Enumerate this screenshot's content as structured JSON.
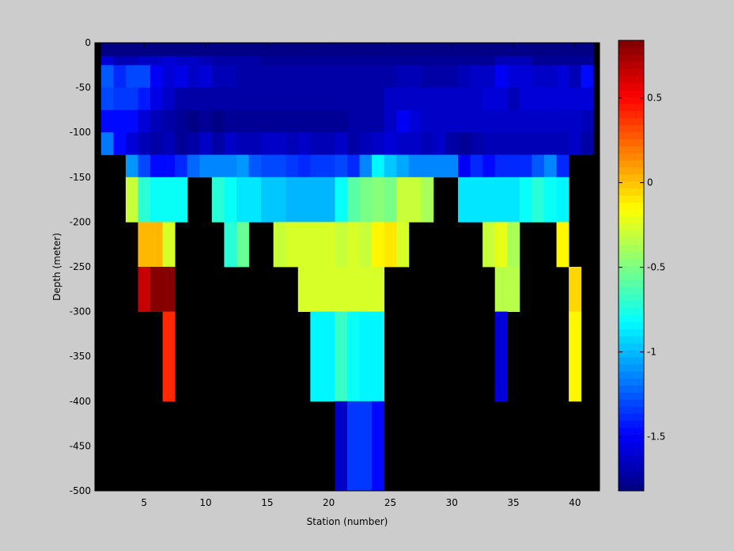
{
  "chart_data": {
    "type": "heatmap",
    "title": "",
    "xlabel": "Station (number)",
    "ylabel": "Depth (meter)",
    "xlim": [
      1,
      42
    ],
    "ylim": [
      -500,
      0
    ],
    "x_ticks": [
      5,
      10,
      15,
      20,
      25,
      30,
      35,
      40
    ],
    "y_ticks": [
      0,
      -50,
      -100,
      -150,
      -200,
      -250,
      -300,
      -350,
      -400,
      -450,
      -500
    ],
    "colorbar": {
      "colormap": "jet",
      "range": [
        -1.82,
        0.84
      ],
      "ticks": [
        0.5,
        0,
        -0.5,
        -1,
        -1.5
      ]
    },
    "no_data_color": "#000000",
    "stations": [
      2,
      3,
      4,
      5,
      6,
      7,
      8,
      9,
      10,
      11,
      12,
      13,
      14,
      15,
      16,
      17,
      18,
      19,
      20,
      21,
      22,
      23,
      24,
      25,
      26,
      27,
      28,
      29,
      30,
      31,
      32,
      33,
      34,
      35,
      36,
      37,
      38,
      39,
      40,
      41
    ],
    "depth_rows": [
      {
        "from": 0,
        "to": -5,
        "values": [
          -1.82,
          -1.82,
          -1.82,
          -1.82,
          -1.82,
          -1.82,
          -1.82,
          -1.82,
          -1.82,
          -1.82,
          -1.82,
          -1.82,
          -1.82,
          -1.82,
          -1.82,
          -1.82,
          -1.82,
          -1.82,
          -1.82,
          -1.82,
          -1.82,
          -1.82,
          -1.82,
          -1.82,
          -1.82,
          -1.82,
          -1.82,
          -1.82,
          -1.82,
          -1.82,
          -1.82,
          -1.82,
          -1.82,
          -1.82,
          -1.82,
          -1.82,
          -1.82,
          -1.82,
          -1.82,
          -1.82
        ]
      },
      {
        "from": -5,
        "to": -15,
        "values": [
          -1.78,
          -1.78,
          -1.78,
          -1.78,
          -1.78,
          -1.78,
          -1.78,
          -1.78,
          -1.78,
          -1.78,
          -1.78,
          -1.78,
          -1.78,
          -1.78,
          -1.78,
          -1.78,
          -1.78,
          -1.78,
          -1.78,
          -1.78,
          -1.78,
          -1.78,
          -1.78,
          -1.78,
          -1.78,
          -1.78,
          -1.78,
          -1.78,
          -1.78,
          -1.78,
          -1.78,
          -1.78,
          -1.78,
          -1.78,
          -1.78,
          -1.78,
          -1.78,
          -1.78,
          -1.78,
          -1.78
        ]
      },
      {
        "from": -15,
        "to": -25,
        "values": [
          -1.6,
          -1.68,
          -1.66,
          -1.62,
          -1.62,
          -1.6,
          -1.62,
          -1.64,
          -1.66,
          -1.72,
          -1.72,
          -1.72,
          -1.72,
          -1.75,
          -1.75,
          -1.75,
          -1.75,
          -1.75,
          -1.75,
          -1.75,
          -1.75,
          -1.75,
          -1.75,
          -1.75,
          -1.75,
          -1.75,
          -1.75,
          -1.75,
          -1.75,
          -1.75,
          -1.75,
          -1.75,
          -1.68,
          -1.68,
          -1.68,
          -1.75,
          -1.75,
          -1.75,
          -1.75,
          -1.75
        ]
      },
      {
        "from": -25,
        "to": -50,
        "values": [
          -1.25,
          -1.4,
          -1.3,
          -1.3,
          -1.5,
          -1.6,
          -1.55,
          -1.65,
          -1.6,
          -1.68,
          -1.66,
          -1.7,
          -1.72,
          -1.72,
          -1.72,
          -1.72,
          -1.72,
          -1.72,
          -1.72,
          -1.72,
          -1.72,
          -1.72,
          -1.72,
          -1.72,
          -1.66,
          -1.68,
          -1.72,
          -1.72,
          -1.72,
          -1.68,
          -1.64,
          -1.64,
          -1.5,
          -1.6,
          -1.6,
          -1.64,
          -1.64,
          -1.58,
          -1.68,
          -1.48
        ]
      },
      {
        "from": -50,
        "to": -75,
        "values": [
          -1.32,
          -1.36,
          -1.36,
          -1.42,
          -1.55,
          -1.62,
          -1.7,
          -1.7,
          -1.7,
          -1.7,
          -1.72,
          -1.72,
          -1.72,
          -1.72,
          -1.72,
          -1.72,
          -1.72,
          -1.72,
          -1.72,
          -1.72,
          -1.72,
          -1.72,
          -1.72,
          -1.62,
          -1.62,
          -1.64,
          -1.64,
          -1.64,
          -1.64,
          -1.64,
          -1.64,
          -1.58,
          -1.58,
          -1.68,
          -1.6,
          -1.6,
          -1.6,
          -1.6,
          -1.6,
          -1.6
        ]
      },
      {
        "from": -75,
        "to": -100,
        "values": [
          -1.45,
          -1.48,
          -1.48,
          -1.6,
          -1.66,
          -1.72,
          -1.76,
          -1.78,
          -1.76,
          -1.8,
          -1.76,
          -1.76,
          -1.76,
          -1.76,
          -1.76,
          -1.76,
          -1.76,
          -1.76,
          -1.76,
          -1.76,
          -1.72,
          -1.72,
          -1.72,
          -1.64,
          -1.52,
          -1.58,
          -1.62,
          -1.62,
          -1.62,
          -1.62,
          -1.62,
          -1.62,
          -1.62,
          -1.62,
          -1.62,
          -1.62,
          -1.62,
          -1.62,
          -1.62,
          -1.68
        ]
      },
      {
        "from": -100,
        "to": -125,
        "values": [
          -1.18,
          -1.48,
          -1.6,
          -1.66,
          -1.72,
          -1.68,
          -1.74,
          -1.7,
          -1.62,
          -1.7,
          -1.64,
          -1.66,
          -1.68,
          -1.64,
          -1.64,
          -1.66,
          -1.62,
          -1.66,
          -1.68,
          -1.64,
          -1.7,
          -1.66,
          -1.64,
          -1.6,
          -1.62,
          -1.64,
          -1.66,
          -1.64,
          -1.7,
          -1.76,
          -1.72,
          -1.66,
          -1.68,
          -1.68,
          -1.68,
          -1.68,
          -1.68,
          -1.66,
          -1.64,
          -1.7
        ]
      },
      {
        "from": -125,
        "to": -150,
        "values": [
          null,
          null,
          -1.1,
          -1.3,
          -1.45,
          -1.45,
          -1.4,
          -1.2,
          -1.15,
          -1.15,
          -1.15,
          -1.1,
          -1.25,
          -1.3,
          -1.3,
          -1.35,
          -1.4,
          -1.35,
          -1.35,
          -1.3,
          -1.38,
          -1.15,
          -0.85,
          -0.95,
          -1.05,
          -1.15,
          -1.15,
          -1.15,
          -1.15,
          -1.5,
          -1.4,
          -1.45,
          -1.4,
          -1.4,
          -1.4,
          -1.25,
          -1.15,
          -1.4,
          null,
          null
        ]
      },
      {
        "from": -150,
        "to": -200,
        "values": [
          null,
          null,
          -0.3,
          -0.72,
          -0.82,
          -0.82,
          -0.82,
          null,
          null,
          -0.72,
          -0.82,
          -0.9,
          -0.9,
          -0.96,
          -0.96,
          -1.0,
          -1.0,
          -1.0,
          -1.0,
          -0.8,
          -0.6,
          -0.5,
          -0.45,
          -0.5,
          -0.3,
          -0.3,
          -0.4,
          null,
          null,
          -0.9,
          -0.9,
          -0.9,
          -0.9,
          -0.9,
          -0.8,
          -0.72,
          -0.8,
          -0.85,
          null,
          null
        ]
      },
      {
        "from": -200,
        "to": -250,
        "values": [
          null,
          null,
          null,
          0.05,
          0.05,
          -0.25,
          null,
          null,
          null,
          null,
          -0.7,
          -0.55,
          null,
          null,
          -0.3,
          -0.25,
          -0.25,
          -0.25,
          -0.25,
          -0.3,
          -0.25,
          -0.3,
          -0.15,
          -0.1,
          -0.25,
          null,
          null,
          null,
          null,
          null,
          null,
          -0.3,
          -0.2,
          -0.4,
          null,
          null,
          null,
          -0.15,
          null,
          null
        ]
      },
      {
        "from": -250,
        "to": -300,
        "values": [
          null,
          null,
          null,
          0.65,
          0.82,
          0.82,
          null,
          null,
          null,
          null,
          null,
          null,
          null,
          null,
          null,
          null,
          -0.25,
          -0.25,
          -0.25,
          -0.25,
          -0.25,
          -0.25,
          -0.25,
          null,
          null,
          null,
          null,
          null,
          null,
          null,
          null,
          null,
          -0.35,
          -0.35,
          null,
          null,
          null,
          null,
          -0.05,
          null
        ]
      },
      {
        "from": -300,
        "to": -400,
        "values": [
          null,
          null,
          null,
          null,
          null,
          0.4,
          null,
          null,
          null,
          null,
          null,
          null,
          null,
          null,
          null,
          null,
          null,
          -0.85,
          -0.85,
          -0.68,
          -0.8,
          -0.85,
          -0.85,
          null,
          null,
          null,
          null,
          null,
          null,
          null,
          null,
          null,
          -1.6,
          null,
          null,
          null,
          null,
          null,
          -0.15,
          null
        ]
      },
      {
        "from": -400,
        "to": -500,
        "values": [
          null,
          null,
          null,
          null,
          null,
          null,
          null,
          null,
          null,
          null,
          null,
          null,
          null,
          null,
          null,
          null,
          null,
          null,
          null,
          -1.62,
          -1.35,
          -1.35,
          -1.45,
          null,
          null,
          null,
          null,
          null,
          null,
          null,
          null,
          null,
          null,
          null,
          null,
          null,
          null,
          null,
          null,
          null
        ]
      }
    ]
  }
}
